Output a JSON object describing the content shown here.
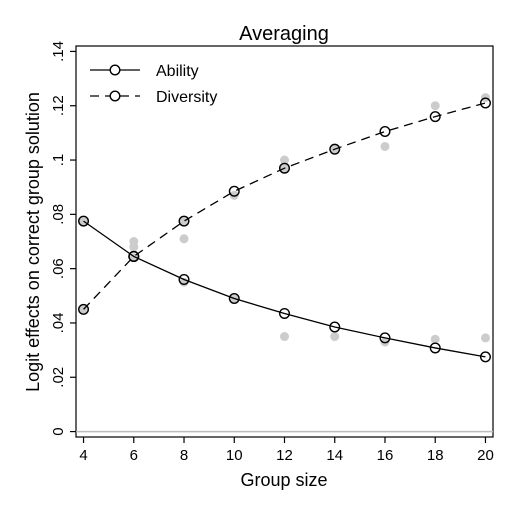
{
  "chart_data": {
    "type": "line",
    "title": "Averaging",
    "xlabel": "Group size",
    "ylabel": "Logit effects on correct group solution",
    "xlim": [
      3.7,
      20.3
    ],
    "ylim": [
      -0.002,
      0.142
    ],
    "x_ticks": [
      4,
      6,
      8,
      10,
      12,
      14,
      16,
      18,
      20
    ],
    "y_ticks": [
      0,
      0.02,
      0.04,
      0.06,
      0.08,
      0.1,
      0.12,
      0.14
    ],
    "y_tick_labels": [
      "0",
      ".02",
      ".04",
      ".06",
      ".08",
      ".1",
      ".12",
      ".14"
    ],
    "x": [
      4,
      6,
      8,
      10,
      12,
      14,
      16,
      18,
      20
    ],
    "series": [
      {
        "name": "Ability",
        "line_style": "solid",
        "marker": "hollow-circle",
        "values": [
          0.0775,
          0.0645,
          0.056,
          0.049,
          0.0435,
          0.0385,
          0.0345,
          0.0308,
          0.0275
        ]
      },
      {
        "name": "Diversity",
        "line_style": "dashed",
        "marker": "hollow-circle",
        "values": [
          0.045,
          0.0645,
          0.0775,
          0.0885,
          0.097,
          0.104,
          0.1105,
          0.116,
          0.121
        ]
      }
    ],
    "background_points": {
      "color": "#cccccc",
      "points": [
        [
          4,
          0.0775
        ],
        [
          4,
          0.045
        ],
        [
          6,
          0.07
        ],
        [
          6,
          0.068
        ],
        [
          6,
          0.064
        ],
        [
          8,
          0.071
        ],
        [
          8,
          0.0775
        ],
        [
          8,
          0.055
        ],
        [
          10,
          0.087
        ],
        [
          10,
          0.049
        ],
        [
          12,
          0.1
        ],
        [
          12,
          0.035
        ],
        [
          12,
          0.097
        ],
        [
          14,
          0.104
        ],
        [
          14,
          0.035
        ],
        [
          16,
          0.105
        ],
        [
          16,
          0.033
        ],
        [
          18,
          0.12
        ],
        [
          18,
          0.034
        ],
        [
          20,
          0.123
        ],
        [
          20,
          0.0345
        ]
      ]
    },
    "reference_line": {
      "y": 0,
      "color": "#bbbbbb"
    },
    "grid": false,
    "legend_position": "top-left"
  }
}
